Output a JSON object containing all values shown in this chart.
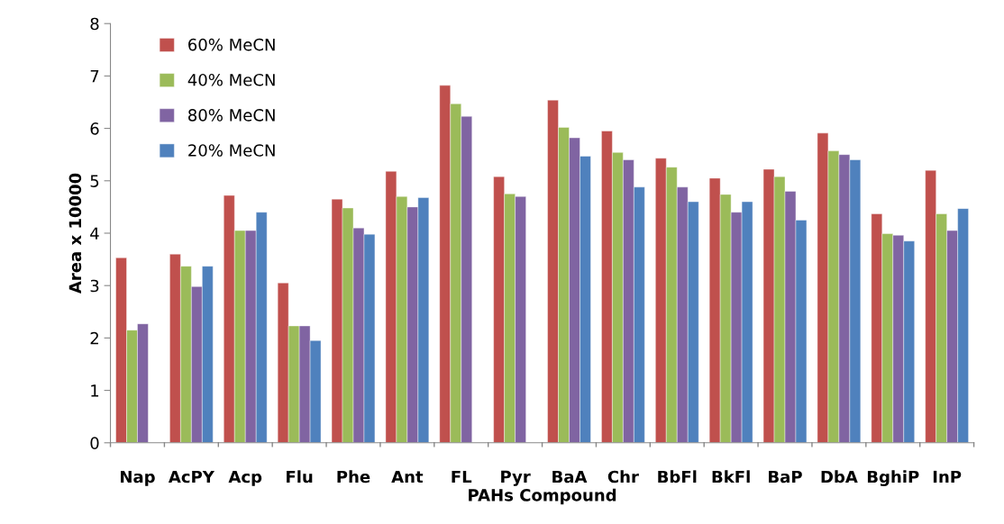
{
  "chart_data": {
    "type": "bar",
    "xlabel": "PAHs Compound",
    "ylabel": "Area x 10000",
    "categories": [
      "Nap",
      "AcPY",
      "Acp",
      "Flu",
      "Phe",
      "Ant",
      "FL",
      "Pyr",
      "BaA",
      "Chr",
      "BbFl",
      "BkFl",
      "BaP",
      "DbA",
      "BghiP",
      "InP"
    ],
    "series": [
      {
        "name": "60% MeCN",
        "color": "#c0504d",
        "values": [
          3.53,
          3.6,
          4.72,
          3.05,
          4.65,
          5.18,
          6.82,
          5.08,
          6.54,
          5.95,
          5.43,
          5.05,
          5.22,
          5.91,
          4.37,
          5.2
        ]
      },
      {
        "name": "40% MeCN",
        "color": "#9bbb59",
        "values": [
          2.15,
          3.37,
          4.05,
          2.23,
          4.48,
          4.7,
          6.47,
          4.75,
          6.02,
          5.54,
          5.26,
          4.74,
          5.08,
          5.57,
          3.99,
          4.37
        ]
      },
      {
        "name": "80% MeCN",
        "color": "#8064a2",
        "values": [
          2.27,
          2.98,
          4.05,
          2.23,
          4.1,
          4.5,
          6.23,
          4.7,
          5.82,
          5.4,
          4.88,
          4.4,
          4.8,
          5.5,
          3.96,
          4.05
        ]
      },
      {
        "name": "20% MeCN",
        "color": "#4f81bd",
        "values": [
          null,
          3.37,
          4.4,
          1.95,
          3.98,
          4.68,
          null,
          null,
          5.47,
          4.88,
          4.6,
          4.6,
          4.25,
          5.4,
          3.85,
          4.47
        ]
      }
    ],
    "ylim": [
      0,
      8
    ],
    "yticks": [
      0,
      1,
      2,
      3,
      4,
      5,
      6,
      7,
      8
    ],
    "grid": false,
    "legend": "top left"
  }
}
